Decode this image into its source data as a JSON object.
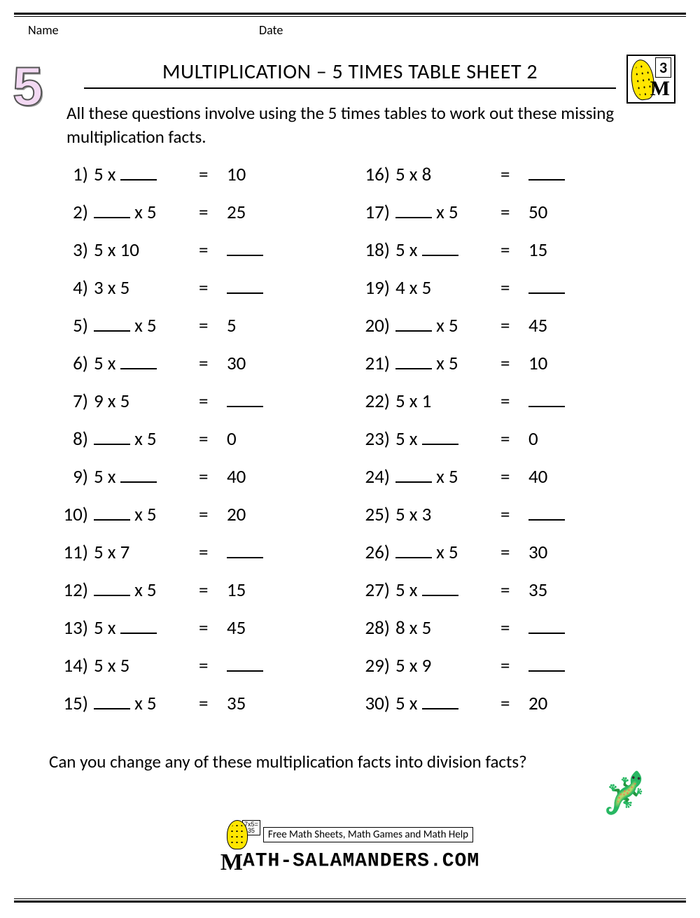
{
  "header": {
    "name_label": "Name",
    "date_label": "Date"
  },
  "badge": {
    "number": "3"
  },
  "big_digit": "5",
  "title": "MULTIPLICATION – 5 TIMES TABLE SHEET 2",
  "instructions": "All these questions involve using the 5 times tables to work out these missing multiplication facts.",
  "problems_left": [
    {
      "n": "1)",
      "a": "5",
      "b": "__",
      "r": "10"
    },
    {
      "n": "2)",
      "a": "__",
      "b": "5",
      "r": "25"
    },
    {
      "n": "3)",
      "a": "5",
      "b": "10",
      "r": "__"
    },
    {
      "n": "4)",
      "a": "3",
      "b": "5",
      "r": "__"
    },
    {
      "n": "5)",
      "a": "__",
      "b": "5",
      "r": "5"
    },
    {
      "n": "6)",
      "a": "5",
      "b": "__",
      "r": "30"
    },
    {
      "n": "7)",
      "a": "9",
      "b": "5",
      "r": "__"
    },
    {
      "n": "8)",
      "a": "__",
      "b": "5",
      "r": "0"
    },
    {
      "n": "9)",
      "a": "5",
      "b": "__",
      "r": "40"
    },
    {
      "n": "10)",
      "a": "__",
      "b": "5",
      "r": "20"
    },
    {
      "n": "11)",
      "a": "5",
      "b": "7",
      "r": "__"
    },
    {
      "n": "12)",
      "a": "__",
      "b": "5",
      "r": "15"
    },
    {
      "n": "13)",
      "a": "5",
      "b": "__",
      "r": "45"
    },
    {
      "n": "14)",
      "a": "5",
      "b": "5",
      "r": "__"
    },
    {
      "n": "15)",
      "a": "__",
      "b": "5",
      "r": "35"
    }
  ],
  "problems_right": [
    {
      "n": "16)",
      "a": "5",
      "b": "8",
      "r": "__"
    },
    {
      "n": "17)",
      "a": "__",
      "b": "5",
      "r": "50"
    },
    {
      "n": "18)",
      "a": "5",
      "b": "__",
      "r": "15"
    },
    {
      "n": "19)",
      "a": "4",
      "b": "5",
      "r": "__"
    },
    {
      "n": "20)",
      "a": "__",
      "b": "5",
      "r": "45"
    },
    {
      "n": "21)",
      "a": "__",
      "b": "5",
      "r": "10"
    },
    {
      "n": "22)",
      "a": "5",
      "b": "1",
      "r": "__"
    },
    {
      "n": "23)",
      "a": "5",
      "b": "__",
      "r": "0"
    },
    {
      "n": "24)",
      "a": "__",
      "b": "5",
      "r": "40"
    },
    {
      "n": "25)",
      "a": "5",
      "b": "3",
      "r": "__"
    },
    {
      "n": "26)",
      "a": "__",
      "b": "5",
      "r": "30"
    },
    {
      "n": "27)",
      "a": "5",
      "b": "__",
      "r": "35"
    },
    {
      "n": "28)",
      "a": "8",
      "b": "5",
      "r": "__"
    },
    {
      "n": "29)",
      "a": "5",
      "b": "9",
      "r": "__"
    },
    {
      "n": "30)",
      "a": "5",
      "b": "__",
      "r": "20"
    }
  ],
  "footer_question": "Can you change any of these multiplication facts into division facts?",
  "brand": {
    "tagline": "Free Math Sheets, Math Games and Math Help",
    "site": "ATH-SALAMANDERS.COM",
    "board": "7x5=\n35"
  }
}
